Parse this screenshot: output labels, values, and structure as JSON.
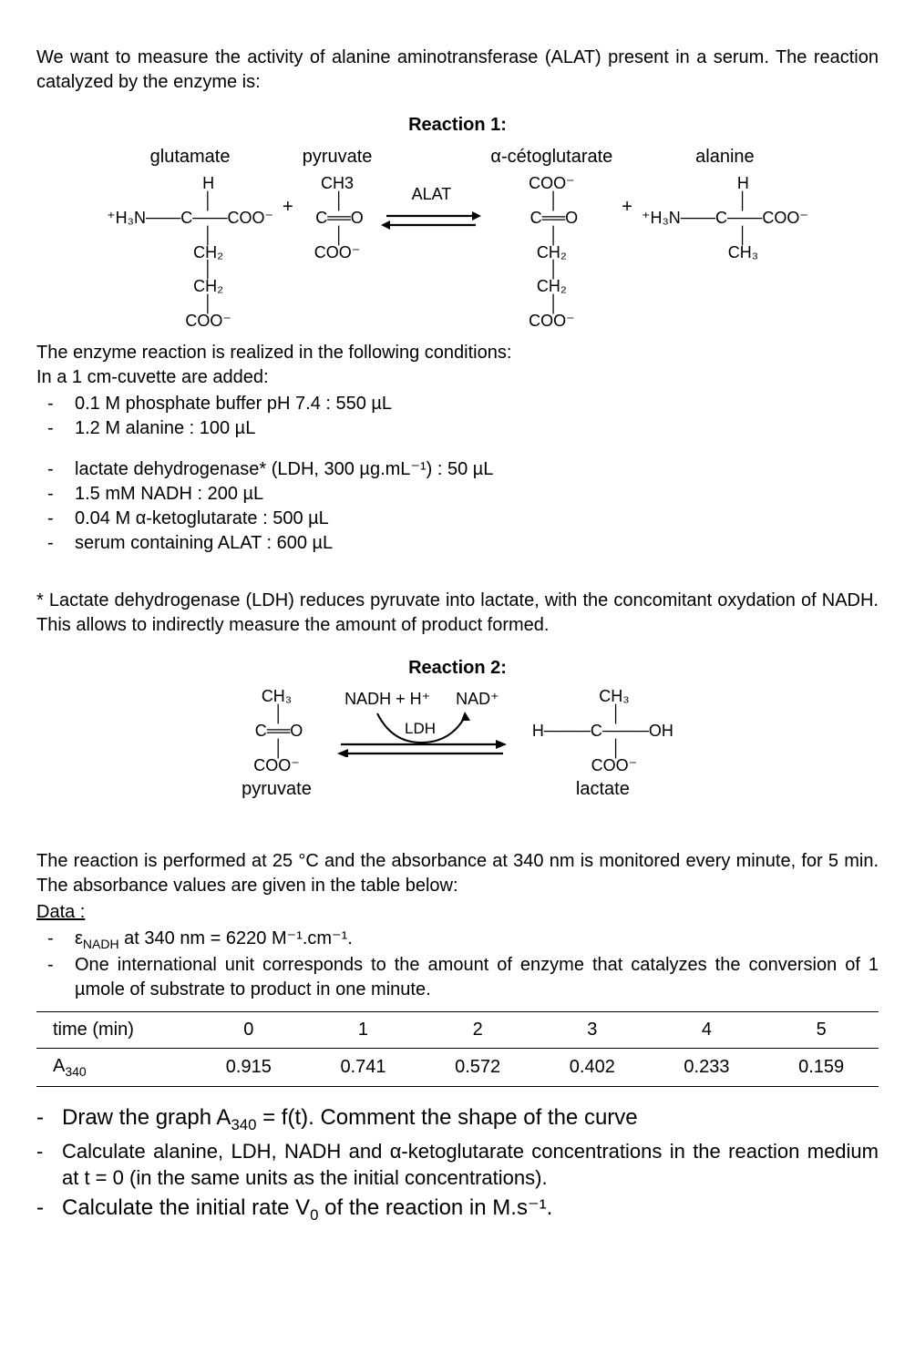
{
  "intro": "We want to measure the activity of alanine aminotransferase (ALAT) present in a serum. The reaction catalyzed by the enzyme is:",
  "rxn1_title": "Reaction 1:",
  "rxn1": {
    "glutamate": "glutamate",
    "pyruvate": "pyruvate",
    "aketo": "α-cétoglutarate",
    "alanine": "alanine",
    "alat": "ALAT",
    "plus": "+"
  },
  "conditions_intro1": "The enzyme reaction is realized in the following conditions:",
  "conditions_intro2": "In a 1 cm-cuvette are added:",
  "conditions_a": [
    "0.1 M phosphate buffer pH 7.4 : 550 µL",
    "1.2 M alanine : 100 µL"
  ],
  "conditions_b": [
    "lactate dehydrogenase* (LDH, 300 µg.mL⁻¹) : 50 µL",
    "1.5 mM NADH : 200 µL",
    "0.04 M α-ketoglutarate : 500 µL",
    "serum containing ALAT : 600 µL"
  ],
  "ldh_note": "* Lactate dehydrogenase (LDH) reduces pyruvate into lactate, with the concomitant oxydation of NADH. This allows to indirectly measure the amount of product formed.",
  "rxn2_title": "Reaction 2:",
  "rxn2": {
    "pyruvate": "pyruvate",
    "lactate": "lactate",
    "nadhh": "NADH + H⁺",
    "nad": "NAD⁺",
    "ldh": "LDH"
  },
  "monitor": "The reaction is performed at 25 °C and the absorbance at 340 nm is monitored every minute, for 5 min. The absorbance values are given in the table below:",
  "data_label": "Data :",
  "data_items": [
    "ε<sub>NADH</sub> at 340 nm = 6220 M⁻¹.cm⁻¹.",
    "One international unit corresponds to the amount of enzyme that catalyzes the conversion of 1 µmole of substrate to product in one minute."
  ],
  "table": {
    "r1_label": "time (min)",
    "r2_label": "A<sub>340</sub>",
    "times": [
      "0",
      "1",
      "2",
      "3",
      "4",
      "5"
    ],
    "abs": [
      "0.915",
      "0.741",
      "0.572",
      "0.402",
      "0.233",
      "0.159"
    ]
  },
  "questions": [
    "Draw the graph A<sub>340</sub> = f(t). Comment the shape of the curve",
    "Calculate alanine, LDH, NADH and α-ketoglutarate concentrations in the reaction medium at t = 0 (in the same units as the initial concentrations).",
    "Calculate the initial rate V<sub>0</sub> of the reaction in M.s⁻¹."
  ]
}
